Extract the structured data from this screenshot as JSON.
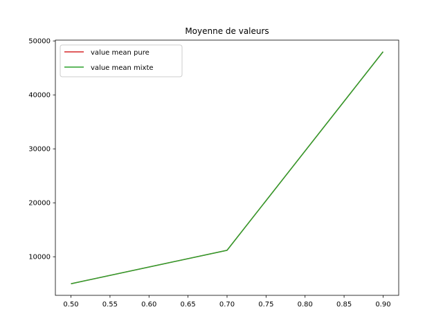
{
  "chart_data": {
    "type": "line",
    "title": "Moyenne de valeurs",
    "xlabel": "",
    "ylabel": "",
    "x": [
      0.5,
      0.7,
      0.9
    ],
    "series": [
      {
        "name": "value mean pure",
        "values": [
          5000,
          11200,
          48000
        ],
        "color": "#d62728"
      },
      {
        "name": "value mean mixte",
        "values": [
          5000,
          11200,
          48000
        ],
        "color": "#2ca02c"
      }
    ],
    "xlim": [
      0.48,
      0.92
    ],
    "ylim": [
      2850,
      50150
    ],
    "x_ticks": [
      "0.50",
      "0.55",
      "0.60",
      "0.65",
      "0.70",
      "0.75",
      "0.80",
      "0.85",
      "0.90"
    ],
    "y_ticks": [
      "10000",
      "20000",
      "30000",
      "40000",
      "50000"
    ],
    "grid": false,
    "legend": "top-left"
  }
}
